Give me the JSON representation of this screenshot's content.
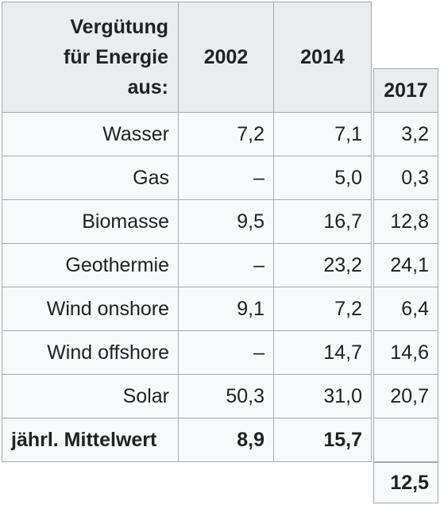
{
  "headers": {
    "source_line1": "Vergütung",
    "source_line2": "für Energie",
    "source_line3": "aus:",
    "y2002": "2002",
    "y2014": "2014",
    "y2017": "2017"
  },
  "rows": [
    {
      "label": "Wasser",
      "v2002": "7,2",
      "v2014": "7,1",
      "v2017": "3,2"
    },
    {
      "label": "Gas",
      "v2002": "–",
      "v2014": "5,0",
      "v2017": "0,3"
    },
    {
      "label": "Biomasse",
      "v2002": "9,5",
      "v2014": "16,7",
      "v2017": "12,8"
    },
    {
      "label": "Geothermie",
      "v2002": "–",
      "v2014": "23,2",
      "v2017": "24,1"
    },
    {
      "label": "Wind onshore",
      "v2002": "9,1",
      "v2014": "7,2",
      "v2017": "6,4"
    },
    {
      "label": "Wind offshore",
      "v2002": "–",
      "v2014": "14,7",
      "v2017": "14,6"
    },
    {
      "label": "Solar",
      "v2002": "50,3",
      "v2014": "31,0",
      "v2017": "20,7"
    }
  ],
  "average": {
    "label": "jährl. Mittelwert",
    "v2002": "8,9",
    "v2014": "15,7",
    "v2017": "12,5"
  }
}
